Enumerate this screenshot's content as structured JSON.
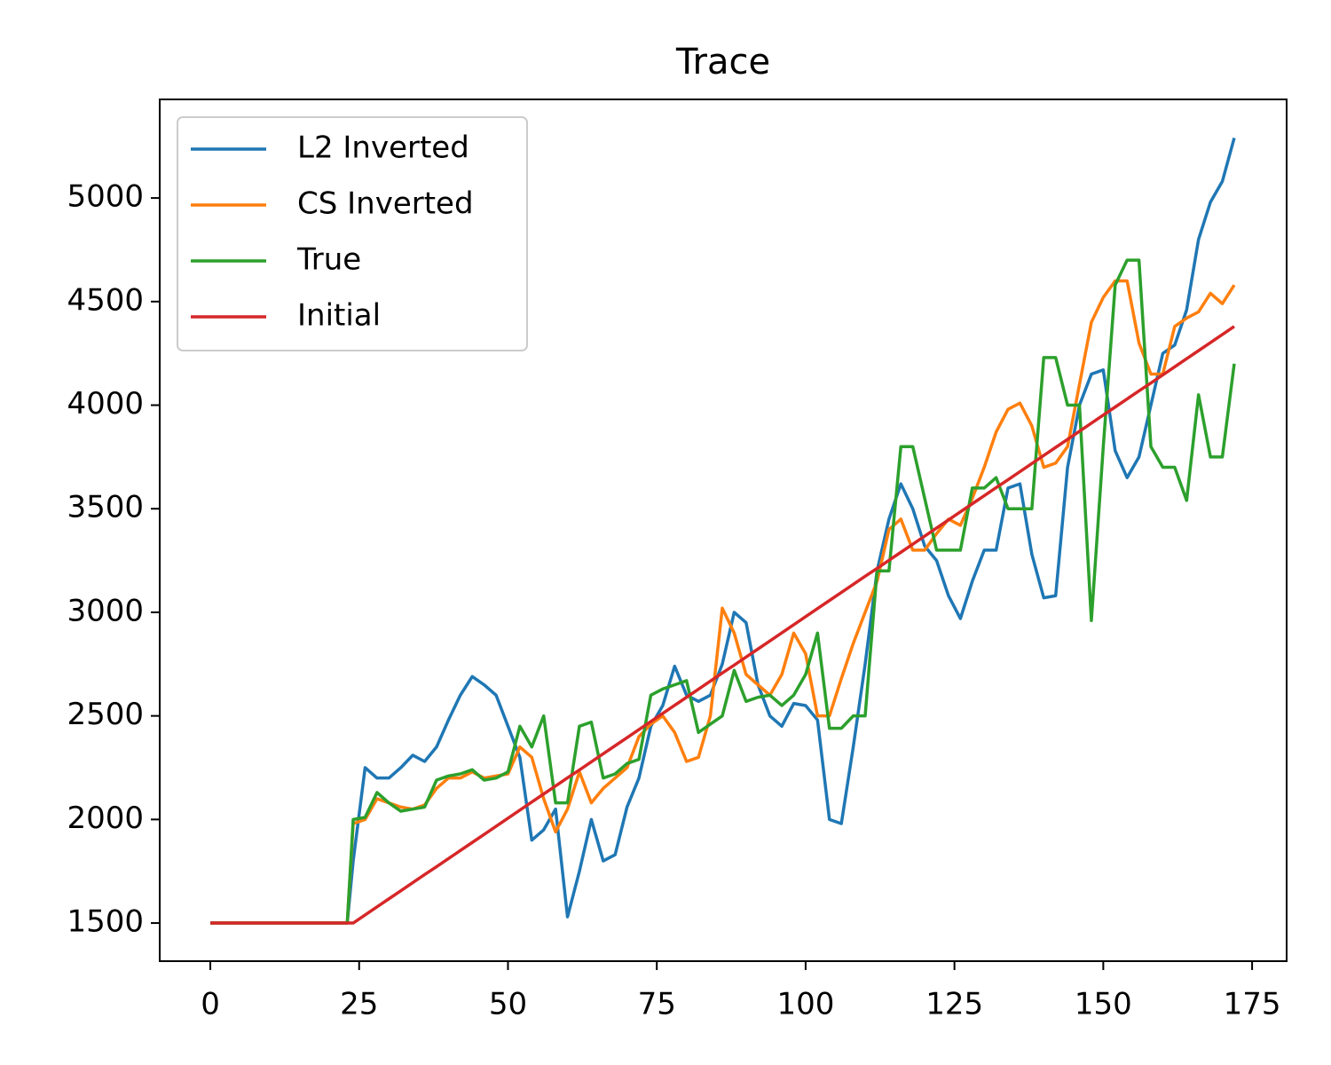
{
  "chart_data": {
    "type": "line",
    "title": "Trace",
    "x": [
      0,
      22,
      23,
      24,
      26,
      28,
      30,
      32,
      34,
      36,
      38,
      40,
      42,
      44,
      46,
      48,
      50,
      52,
      54,
      56,
      58,
      60,
      62,
      64,
      66,
      68,
      70,
      72,
      74,
      76,
      78,
      80,
      82,
      84,
      86,
      88,
      90,
      92,
      94,
      96,
      98,
      100,
      102,
      104,
      106,
      108,
      110,
      112,
      114,
      116,
      118,
      120,
      122,
      124,
      126,
      128,
      130,
      132,
      134,
      136,
      138,
      140,
      142,
      144,
      146,
      148,
      150,
      152,
      154,
      156,
      158,
      160,
      162,
      164,
      166,
      168,
      170,
      172
    ],
    "series": [
      {
        "name": "L2 Inverted",
        "color": "#1f77b4",
        "values": [
          1500,
          1500,
          1500,
          1800,
          2250,
          2200,
          2200,
          2250,
          2310,
          2280,
          2350,
          2480,
          2600,
          2690,
          2650,
          2600,
          2450,
          2300,
          1900,
          1950,
          2050,
          1530,
          1750,
          2000,
          1800,
          1830,
          2060,
          2200,
          2450,
          2550,
          2740,
          2600,
          2570,
          2600,
          2750,
          3000,
          2950,
          2650,
          2500,
          2450,
          2560,
          2550,
          2480,
          2000,
          1980,
          2350,
          2750,
          3200,
          3450,
          3620,
          3500,
          3320,
          3250,
          3080,
          2970,
          3150,
          3300,
          3300,
          3600,
          3620,
          3280,
          3070,
          3080,
          3700,
          4000,
          4150,
          4170,
          3780,
          3650,
          3750,
          4000,
          4250,
          4290,
          4460,
          4800,
          4980,
          5080,
          5290
        ]
      },
      {
        "name": "CS Inverted",
        "color": "#ff7f0e",
        "values": [
          1500,
          1500,
          1500,
          1980,
          2000,
          2100,
          2080,
          2060,
          2050,
          2070,
          2150,
          2200,
          2200,
          2230,
          2200,
          2210,
          2220,
          2350,
          2300,
          2100,
          1940,
          2050,
          2230,
          2080,
          2150,
          2200,
          2250,
          2400,
          2460,
          2500,
          2420,
          2280,
          2300,
          2500,
          3020,
          2900,
          2700,
          2650,
          2600,
          2700,
          2900,
          2800,
          2500,
          2500,
          2680,
          2850,
          3000,
          3150,
          3400,
          3450,
          3300,
          3300,
          3380,
          3450,
          3420,
          3550,
          3700,
          3870,
          3980,
          4010,
          3900,
          3700,
          3720,
          3800,
          4100,
          4400,
          4520,
          4600,
          4600,
          4300,
          4150,
          4150,
          4380,
          4420,
          4450,
          4540,
          4490,
          4580
        ]
      },
      {
        "name": "True",
        "color": "#2ca02c",
        "values": [
          1500,
          1500,
          1500,
          2000,
          2010,
          2130,
          2080,
          2040,
          2050,
          2060,
          2190,
          2210,
          2220,
          2240,
          2190,
          2200,
          2230,
          2450,
          2350,
          2500,
          2080,
          2080,
          2450,
          2470,
          2200,
          2220,
          2270,
          2290,
          2600,
          2630,
          2650,
          2670,
          2420,
          2460,
          2500,
          2720,
          2570,
          2590,
          2600,
          2550,
          2600,
          2700,
          2900,
          2440,
          2440,
          2500,
          2500,
          3200,
          3200,
          3800,
          3800,
          3550,
          3300,
          3300,
          3300,
          3600,
          3600,
          3650,
          3500,
          3500,
          3500,
          4230,
          4230,
          4000,
          4000,
          2960,
          3800,
          4580,
          4700,
          4700,
          3800,
          3700,
          3700,
          3540,
          4050,
          3750,
          3750,
          4200
        ]
      },
      {
        "name": "Initial",
        "color": "#d62728",
        "values": [
          1500,
          1500,
          1500,
          1500,
          1539,
          1578,
          1617,
          1656,
          1695,
          1734,
          1772,
          1811,
          1850,
          1889,
          1928,
          1967,
          2006,
          2045,
          2084,
          2123,
          2162,
          2201,
          2239,
          2278,
          2317,
          2356,
          2395,
          2434,
          2473,
          2512,
          2551,
          2590,
          2629,
          2668,
          2707,
          2745,
          2784,
          2823,
          2862,
          2901,
          2940,
          2979,
          3018,
          3057,
          3096,
          3135,
          3174,
          3212,
          3251,
          3290,
          3329,
          3368,
          3407,
          3446,
          3485,
          3524,
          3563,
          3602,
          3640,
          3679,
          3718,
          3757,
          3796,
          3835,
          3874,
          3913,
          3952,
          3991,
          4030,
          4069,
          4107,
          4146,
          4185,
          4224,
          4263,
          4302,
          4341,
          4380
        ]
      }
    ],
    "xlim": [
      -8.5,
      180.8
    ],
    "ylim": [
      1316,
      5476
    ],
    "xticks": [
      0,
      25,
      50,
      75,
      100,
      125,
      150,
      175
    ],
    "yticks": [
      1500,
      2000,
      2500,
      3000,
      3500,
      4000,
      4500,
      5000
    ],
    "grid": false,
    "legend": "upper left"
  }
}
